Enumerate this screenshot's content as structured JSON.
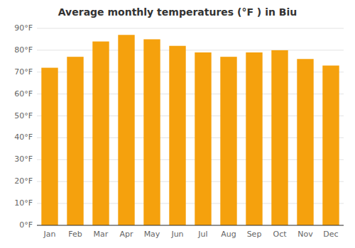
{
  "chart_data": {
    "type": "bar",
    "title": "Average monthly temperatures (°F ) in Biu",
    "categories": [
      "Jan",
      "Feb",
      "Mar",
      "Apr",
      "May",
      "Jun",
      "Jul",
      "Aug",
      "Sep",
      "Oct",
      "Nov",
      "Dec"
    ],
    "values": [
      72,
      77,
      84,
      87,
      85,
      82,
      79,
      77,
      79,
      80,
      76,
      73
    ],
    "color": "#F5A10D",
    "ylim": [
      0,
      90
    ],
    "yticks": [
      {
        "value": 0,
        "label": "0°F"
      },
      {
        "value": 10,
        "label": "10°F"
      },
      {
        "value": 20,
        "label": "20°F"
      },
      {
        "value": 30,
        "label": "30°F"
      },
      {
        "value": 40,
        "label": "40°F"
      },
      {
        "value": 50,
        "label": "50°F"
      },
      {
        "value": 60,
        "label": "60°F"
      },
      {
        "value": 70,
        "label": "70°F"
      },
      {
        "value": 80,
        "label": "80°F"
      },
      {
        "value": 90,
        "label": "90°F"
      }
    ],
    "grid": true
  }
}
